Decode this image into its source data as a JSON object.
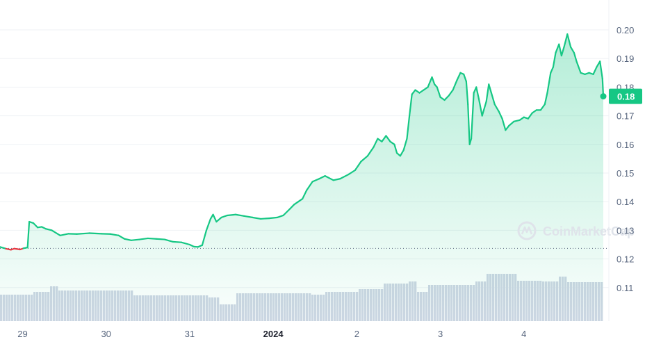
{
  "chart_data": {
    "type": "area",
    "y_ticks": [
      "0.20",
      "0.19",
      "0.18",
      "0.17",
      "0.16",
      "0.15",
      "0.14",
      "0.13",
      "0.12",
      "0.11"
    ],
    "ylim": [
      0.1,
      0.2075
    ],
    "x_ticks": [
      {
        "label": "29",
        "x": 29,
        "bold": false
      },
      {
        "label": "30",
        "x": 30,
        "bold": false
      },
      {
        "label": "31",
        "x": 31,
        "bold": false
      },
      {
        "label": "2024",
        "x": 32,
        "bold": true
      },
      {
        "label": "2",
        "x": 33,
        "bold": false
      },
      {
        "label": "3",
        "x": 34,
        "bold": false
      },
      {
        "label": "4",
        "x": 35,
        "bold": false
      }
    ],
    "xlim": [
      28.73,
      35.95
    ],
    "current_price": "0.18",
    "current_value": 0.1768,
    "reference_value": 0.1237,
    "colors": {
      "up": "#16c784",
      "down": "#ea3943",
      "area_top": "#16c784",
      "volume": "#cfd6e4",
      "price_tag": "#16c784"
    },
    "watermark": "CoinMarketCap",
    "price_series": [
      [
        28.73,
        0.1242
      ],
      [
        28.8,
        0.1236
      ],
      [
        28.86,
        0.1232
      ],
      [
        28.9,
        0.1236
      ],
      [
        28.97,
        0.1233
      ],
      [
        29.01,
        0.1237
      ],
      [
        29.06,
        0.124
      ],
      [
        29.08,
        0.133
      ],
      [
        29.13,
        0.1325
      ],
      [
        29.18,
        0.131
      ],
      [
        29.23,
        0.1312
      ],
      [
        29.28,
        0.1305
      ],
      [
        29.35,
        0.13
      ],
      [
        29.45,
        0.1282
      ],
      [
        29.55,
        0.1288
      ],
      [
        29.65,
        0.1287
      ],
      [
        29.8,
        0.129
      ],
      [
        29.95,
        0.1288
      ],
      [
        30.05,
        0.1287
      ],
      [
        30.15,
        0.1282
      ],
      [
        30.22,
        0.127
      ],
      [
        30.3,
        0.1265
      ],
      [
        30.4,
        0.1268
      ],
      [
        30.5,
        0.1272
      ],
      [
        30.6,
        0.127
      ],
      [
        30.7,
        0.1268
      ],
      [
        30.8,
        0.126
      ],
      [
        30.9,
        0.1258
      ],
      [
        31.0,
        0.125
      ],
      [
        31.05,
        0.1243
      ],
      [
        31.1,
        0.1242
      ],
      [
        31.15,
        0.1248
      ],
      [
        31.2,
        0.13
      ],
      [
        31.25,
        0.134
      ],
      [
        31.28,
        0.1355
      ],
      [
        31.32,
        0.133
      ],
      [
        31.38,
        0.1345
      ],
      [
        31.45,
        0.1352
      ],
      [
        31.55,
        0.1355
      ],
      [
        31.65,
        0.135
      ],
      [
        31.75,
        0.1345
      ],
      [
        31.85,
        0.134
      ],
      [
        31.95,
        0.1342
      ],
      [
        32.05,
        0.1345
      ],
      [
        32.12,
        0.1352
      ],
      [
        32.2,
        0.1375
      ],
      [
        32.25,
        0.139
      ],
      [
        32.3,
        0.14
      ],
      [
        32.35,
        0.141
      ],
      [
        32.4,
        0.144
      ],
      [
        32.47,
        0.147
      ],
      [
        32.55,
        0.148
      ],
      [
        32.62,
        0.149
      ],
      [
        32.72,
        0.1475
      ],
      [
        32.8,
        0.148
      ],
      [
        32.9,
        0.1495
      ],
      [
        32.98,
        0.151
      ],
      [
        33.05,
        0.154
      ],
      [
        33.13,
        0.156
      ],
      [
        33.2,
        0.159
      ],
      [
        33.25,
        0.162
      ],
      [
        33.3,
        0.161
      ],
      [
        33.35,
        0.163
      ],
      [
        33.4,
        0.161
      ],
      [
        33.45,
        0.16
      ],
      [
        33.48,
        0.157
      ],
      [
        33.52,
        0.156
      ],
      [
        33.56,
        0.158
      ],
      [
        33.6,
        0.162
      ],
      [
        33.63,
        0.17
      ],
      [
        33.66,
        0.1775
      ],
      [
        33.7,
        0.179
      ],
      [
        33.75,
        0.178
      ],
      [
        33.8,
        0.179
      ],
      [
        33.85,
        0.18
      ],
      [
        33.9,
        0.1835
      ],
      [
        33.93,
        0.181
      ],
      [
        33.96,
        0.18
      ],
      [
        34.0,
        0.1765
      ],
      [
        34.05,
        0.1755
      ],
      [
        34.1,
        0.177
      ],
      [
        34.15,
        0.179
      ],
      [
        34.2,
        0.1825
      ],
      [
        34.24,
        0.185
      ],
      [
        34.28,
        0.1845
      ],
      [
        34.31,
        0.182
      ],
      [
        34.33,
        0.174
      ],
      [
        34.35,
        0.16
      ],
      [
        34.37,
        0.162
      ],
      [
        34.4,
        0.178
      ],
      [
        34.43,
        0.18
      ],
      [
        34.46,
        0.176
      ],
      [
        34.5,
        0.17
      ],
      [
        34.52,
        0.172
      ],
      [
        34.55,
        0.175
      ],
      [
        34.58,
        0.181
      ],
      [
        34.61,
        0.178
      ],
      [
        34.65,
        0.174
      ],
      [
        34.7,
        0.1715
      ],
      [
        34.74,
        0.169
      ],
      [
        34.78,
        0.165
      ],
      [
        34.82,
        0.1665
      ],
      [
        34.88,
        0.168
      ],
      [
        34.95,
        0.1685
      ],
      [
        35.0,
        0.1695
      ],
      [
        35.05,
        0.169
      ],
      [
        35.1,
        0.171
      ],
      [
        35.15,
        0.172
      ],
      [
        35.2,
        0.172
      ],
      [
        35.25,
        0.174
      ],
      [
        35.28,
        0.178
      ],
      [
        35.32,
        0.185
      ],
      [
        35.35,
        0.187
      ],
      [
        35.38,
        0.192
      ],
      [
        35.42,
        0.195
      ],
      [
        35.45,
        0.191
      ],
      [
        35.48,
        0.194
      ],
      [
        35.52,
        0.1985
      ],
      [
        35.56,
        0.194
      ],
      [
        35.6,
        0.192
      ],
      [
        35.63,
        0.189
      ],
      [
        35.68,
        0.185
      ],
      [
        35.73,
        0.1845
      ],
      [
        35.78,
        0.185
      ],
      [
        35.83,
        0.1845
      ],
      [
        35.87,
        0.187
      ],
      [
        35.91,
        0.189
      ],
      [
        35.94,
        0.183
      ],
      [
        35.95,
        0.1768
      ]
    ]
  }
}
